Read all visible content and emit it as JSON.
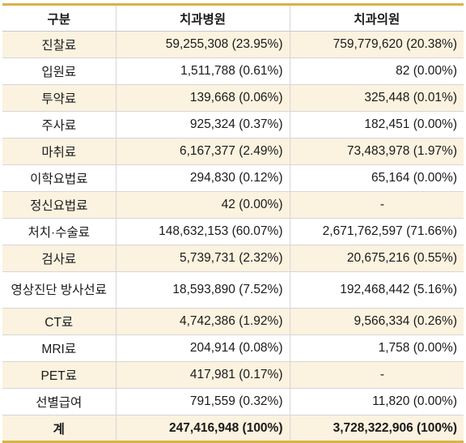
{
  "header": {
    "category": "구분",
    "col1": "치과병원",
    "col2": "치과의원"
  },
  "rows": [
    {
      "label": "진찰료",
      "c1": "59,255,308 (23.95%)",
      "c2": "759,779,620 (20.38%)"
    },
    {
      "label": "입원료",
      "c1": "1,511,788 (0.61%)",
      "c2": "82 (0.00%)"
    },
    {
      "label": "투약료",
      "c1": "139,668 (0.06%)",
      "c2": "325,448 (0.01%)"
    },
    {
      "label": "주사료",
      "c1": "925,324 (0.37%)",
      "c2": "182,451 (0.00%)"
    },
    {
      "label": "마취료",
      "c1": "6,167,377 (2.49%)",
      "c2": "73,483,978 (1.97%)"
    },
    {
      "label": "이학요법료",
      "c1": "294,830 (0.12%)",
      "c2": "65,164 (0.00%)"
    },
    {
      "label": "정신요법료",
      "c1": "42 (0.00%)",
      "c2": "-"
    },
    {
      "label": "처치·수술료",
      "c1": "148,632,153 (60.07%)",
      "c2": "2,671,762,597 (71.66%)"
    },
    {
      "label": "검사료",
      "c1": "5,739,731 (2.32%)",
      "c2": "20,675,216 (0.55%)"
    },
    {
      "label": "영상진단 방사선료",
      "c1": "18,593,890 (7.52%)",
      "c2": "192,468,442 (5.16%)"
    },
    {
      "label": "CT료",
      "c1": "4,742,386 (1.92%)",
      "c2": "9,566,334 (0.26%)"
    },
    {
      "label": "MRI료",
      "c1": "204,914 (0.08%)",
      "c2": "1,758 (0.00%)"
    },
    {
      "label": "PET료",
      "c1": "417,981 (0.17%)",
      "c2": "-"
    },
    {
      "label": "선별급여",
      "c1": "791,559 (0.32%)",
      "c2": "11,820 (0.00%)"
    }
  ],
  "total": {
    "label": "계",
    "c1": "247,416,948 (100%)",
    "c2": "3,728,322,906 (100%)"
  },
  "colors": {
    "accent_border": "#d8b24a",
    "row_shade": "#fbf2df"
  }
}
